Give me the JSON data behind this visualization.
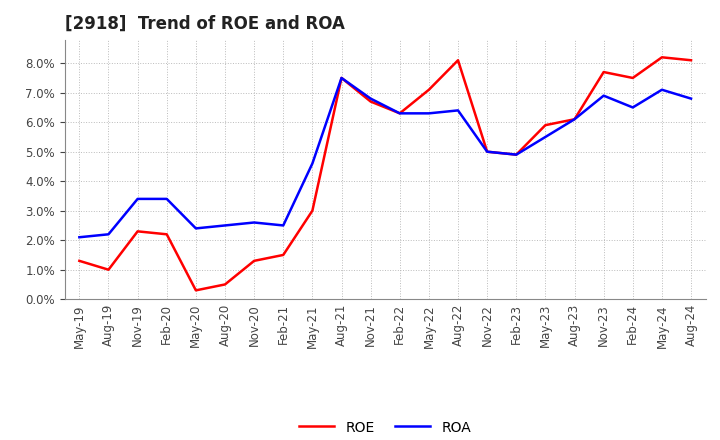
{
  "title": "[2918]  Trend of ROE and ROA",
  "x_labels": [
    "May-19",
    "Aug-19",
    "Nov-19",
    "Feb-20",
    "May-20",
    "Aug-20",
    "Nov-20",
    "Feb-21",
    "May-21",
    "Aug-21",
    "Nov-21",
    "Feb-22",
    "May-22",
    "Aug-22",
    "Nov-22",
    "Feb-23",
    "May-23",
    "Aug-23",
    "Nov-23",
    "Feb-24",
    "May-24",
    "Aug-24"
  ],
  "roe": [
    1.3,
    1.0,
    2.3,
    2.2,
    0.3,
    0.5,
    1.3,
    1.5,
    3.0,
    7.5,
    6.7,
    6.3,
    7.1,
    8.1,
    5.0,
    4.9,
    5.9,
    6.1,
    7.7,
    7.5,
    8.2,
    8.1
  ],
  "roa": [
    2.1,
    2.2,
    3.4,
    3.4,
    2.4,
    2.5,
    2.6,
    2.5,
    4.6,
    7.5,
    6.8,
    6.3,
    6.3,
    6.4,
    5.0,
    4.9,
    5.5,
    6.1,
    6.9,
    6.5,
    7.1,
    6.8
  ],
  "roe_color": "#FF0000",
  "roa_color": "#0000FF",
  "background_color": "#FFFFFF",
  "grid_color": "#AAAAAA",
  "ylim": [
    0.0,
    8.8
  ],
  "yticks": [
    0.0,
    1.0,
    2.0,
    3.0,
    4.0,
    5.0,
    6.0,
    7.0,
    8.0
  ],
  "title_fontsize": 12,
  "legend_fontsize": 10,
  "tick_fontsize": 8.5
}
